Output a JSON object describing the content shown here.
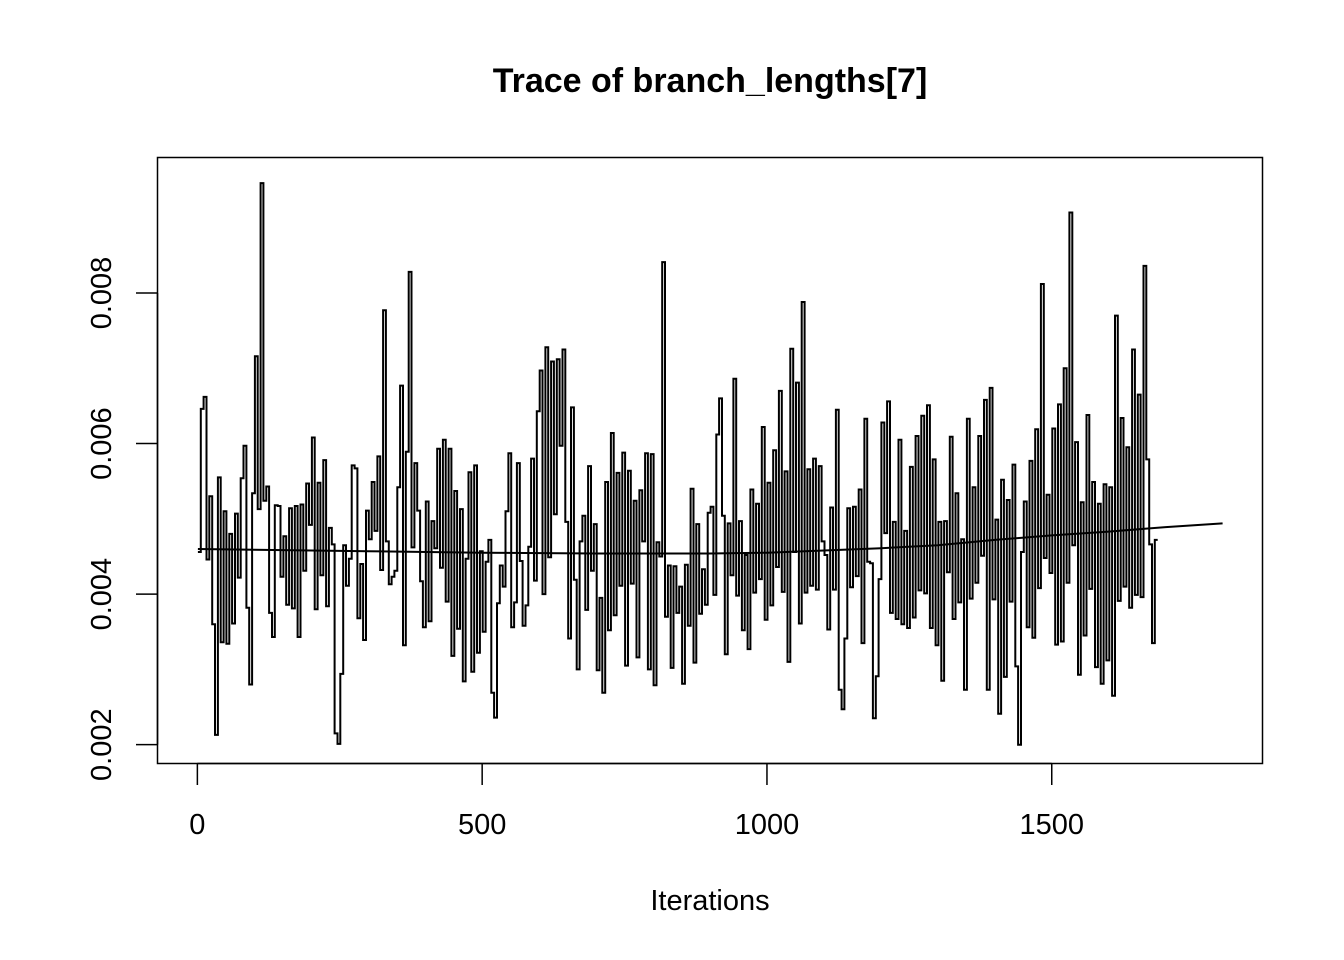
{
  "chart_data": {
    "type": "line",
    "title": "Trace of branch_lengths[7]",
    "xlabel": "Iterations",
    "ylabel": "",
    "xlim": [
      -70,
      1870
    ],
    "ylim": [
      0.00175,
      0.0098
    ],
    "x_ticks": [
      0,
      500,
      1000,
      1500
    ],
    "x_tick_labels": [
      "0",
      "500",
      "1000",
      "1500"
    ],
    "y_ticks": [
      0.002,
      0.004,
      0.006,
      0.008
    ],
    "y_tick_labels": [
      "0.002",
      "0.004",
      "0.006",
      "0.008"
    ],
    "grid": false,
    "line_color": "#000000",
    "series": [
      {
        "style": "step",
        "x_start": 1,
        "x_step": 5,
        "values": [
          0.00456,
          0.00646,
          0.00662,
          0.00446,
          0.0053,
          0.0036,
          0.00213,
          0.00555,
          0.00336,
          0.0051,
          0.00334,
          0.0048,
          0.00361,
          0.00507,
          0.00422,
          0.00554,
          0.00597,
          0.00382,
          0.0028,
          0.00534,
          0.00716,
          0.00513,
          0.00946,
          0.00524,
          0.00543,
          0.00375,
          0.00343,
          0.00518,
          0.00517,
          0.00423,
          0.00477,
          0.00386,
          0.00514,
          0.00381,
          0.00517,
          0.00343,
          0.00519,
          0.00431,
          0.00547,
          0.00492,
          0.00608,
          0.0038,
          0.00548,
          0.00425,
          0.00578,
          0.00384,
          0.00488,
          0.00466,
          0.00215,
          0.00201,
          0.00294,
          0.00465,
          0.00411,
          0.00447,
          0.00571,
          0.00567,
          0.00368,
          0.0044,
          0.00339,
          0.00511,
          0.00473,
          0.00549,
          0.00484,
          0.00583,
          0.00432,
          0.00777,
          0.0047,
          0.00413,
          0.00423,
          0.00431,
          0.00542,
          0.00677,
          0.00332,
          0.00589,
          0.00828,
          0.00462,
          0.00574,
          0.00511,
          0.00417,
          0.00356,
          0.00523,
          0.00364,
          0.00497,
          0.00461,
          0.00593,
          0.00435,
          0.00605,
          0.0039,
          0.00593,
          0.00318,
          0.00537,
          0.00354,
          0.00513,
          0.00284,
          0.00447,
          0.00562,
          0.00297,
          0.00571,
          0.00322,
          0.00457,
          0.0035,
          0.00443,
          0.00472,
          0.00269,
          0.00236,
          0.00388,
          0.00438,
          0.0041,
          0.0051,
          0.00587,
          0.00356,
          0.00389,
          0.00574,
          0.00444,
          0.00358,
          0.00385,
          0.00463,
          0.0058,
          0.00418,
          0.00643,
          0.00697,
          0.004,
          0.00728,
          0.00449,
          0.00709,
          0.00506,
          0.00712,
          0.00597,
          0.00725,
          0.00496,
          0.00341,
          0.00648,
          0.00419,
          0.003,
          0.0047,
          0.00504,
          0.00379,
          0.0057,
          0.00431,
          0.00493,
          0.00299,
          0.00395,
          0.00269,
          0.00549,
          0.00352,
          0.00614,
          0.00372,
          0.00561,
          0.00411,
          0.00588,
          0.00305,
          0.00564,
          0.00414,
          0.00524,
          0.00316,
          0.00538,
          0.0047,
          0.00587,
          0.003,
          0.00586,
          0.00279,
          0.00469,
          0.0045,
          0.00841,
          0.0037,
          0.00438,
          0.00302,
          0.00437,
          0.00375,
          0.0041,
          0.00281,
          0.00439,
          0.00358,
          0.0054,
          0.00309,
          0.00493,
          0.00374,
          0.00433,
          0.00386,
          0.00508,
          0.00516,
          0.00399,
          0.00612,
          0.0066,
          0.00504,
          0.0032,
          0.00494,
          0.00425,
          0.00686,
          0.00398,
          0.00497,
          0.00352,
          0.00452,
          0.00327,
          0.00539,
          0.00402,
          0.0052,
          0.0042,
          0.00622,
          0.00366,
          0.00548,
          0.00385,
          0.00591,
          0.00436,
          0.0067,
          0.00403,
          0.00563,
          0.0031,
          0.00726,
          0.00456,
          0.00681,
          0.00361,
          0.00788,
          0.00402,
          0.00566,
          0.00411,
          0.0058,
          0.00406,
          0.0057,
          0.0047,
          0.00452,
          0.00353,
          0.00515,
          0.00406,
          0.00645,
          0.00273,
          0.00247,
          0.00341,
          0.00514,
          0.00409,
          0.00516,
          0.00424,
          0.00539,
          0.00335,
          0.00633,
          0.00443,
          0.00441,
          0.00235,
          0.00291,
          0.0042,
          0.00628,
          0.00481,
          0.00656,
          0.00375,
          0.00496,
          0.00367,
          0.00605,
          0.0036,
          0.00484,
          0.00355,
          0.00569,
          0.00369,
          0.0061,
          0.00405,
          0.00637,
          0.00401,
          0.00651,
          0.00355,
          0.00579,
          0.00332,
          0.00496,
          0.00285,
          0.00497,
          0.00429,
          0.00609,
          0.00367,
          0.00534,
          0.00389,
          0.00473,
          0.00273,
          0.00633,
          0.00394,
          0.00542,
          0.00415,
          0.0061,
          0.00451,
          0.00658,
          0.00273,
          0.00674,
          0.00393,
          0.00499,
          0.00241,
          0.00552,
          0.0029,
          0.00525,
          0.0039,
          0.00572,
          0.00304,
          0.002,
          0.00456,
          0.00523,
          0.00356,
          0.00577,
          0.00342,
          0.00619,
          0.00408,
          0.00812,
          0.00448,
          0.00532,
          0.00428,
          0.0062,
          0.00333,
          0.00652,
          0.00337,
          0.007,
          0.00415,
          0.00907,
          0.00465,
          0.00602,
          0.00293,
          0.00522,
          0.00345,
          0.00638,
          0.00407,
          0.00549,
          0.00303,
          0.0052,
          0.00281,
          0.00546,
          0.00312,
          0.00542,
          0.00265,
          0.0077,
          0.00391,
          0.00634,
          0.0041,
          0.00595,
          0.00382,
          0.00725,
          0.00399,
          0.00665,
          0.00396,
          0.00836,
          0.00579,
          0.00466,
          0.00335,
          0.00472
        ]
      },
      {
        "style": "line",
        "x": [
          1,
          100,
          300,
          500,
          700,
          900,
          1000,
          1100,
          1200,
          1300,
          1400,
          1500,
          1600,
          1700,
          1800
        ],
        "values": [
          0.0046,
          0.00459,
          0.00457,
          0.00455,
          0.00454,
          0.00454,
          0.00455,
          0.00458,
          0.00461,
          0.00465,
          0.00472,
          0.00478,
          0.00483,
          0.00489,
          0.00494
        ]
      }
    ]
  }
}
